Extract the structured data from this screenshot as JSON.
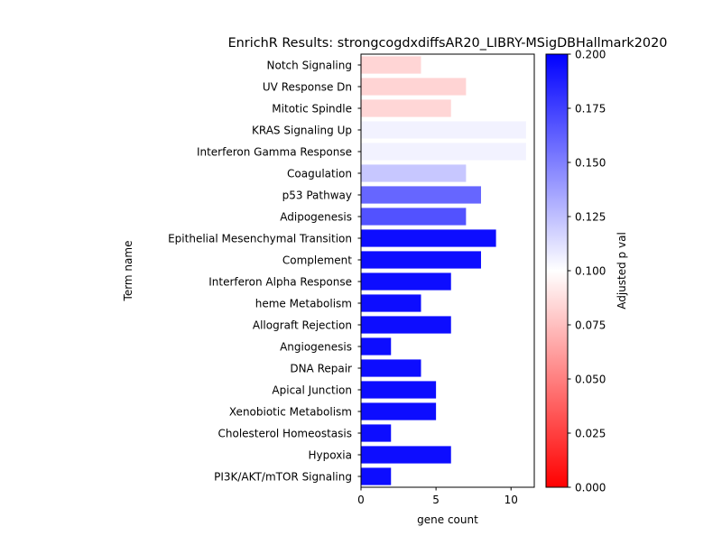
{
  "chart_data": {
    "type": "bar",
    "orientation": "horizontal",
    "title": "EnrichR Results: strongcogdxdiffsAR20_LIBRY-MSigDBHallmark2020",
    "xlabel": "gene count",
    "ylabel": "Term name",
    "xlim": [
      0,
      11.55
    ],
    "x_ticks": [
      "0",
      "5",
      "10"
    ],
    "grid": false,
    "categories": [
      "Notch Signaling",
      "UV Response Dn",
      "Mitotic Spindle",
      "KRAS Signaling Up",
      "Interferon Gamma Response",
      "Coagulation",
      "p53 Pathway",
      "Adipogenesis",
      "Epithelial Mesenchymal Transition",
      "Complement",
      "Interferon Alpha Response",
      "heme Metabolism",
      "Allograft Rejection",
      "Angiogenesis",
      "DNA Repair",
      "Apical Junction",
      "Xenobiotic Metabolism",
      "Cholesterol Homeostasis",
      "Hypoxia",
      "PI3K/AKT/mTOR  Signaling"
    ],
    "values": [
      4,
      7,
      6,
      11,
      11,
      7,
      8,
      7,
      9,
      8,
      6,
      4,
      6,
      2,
      4,
      5,
      5,
      2,
      6,
      2
    ],
    "adjusted_p": [
      0.0835,
      0.083,
      0.084,
      0.105,
      0.105,
      0.122,
      0.16,
      0.168,
      0.195,
      0.195,
      0.195,
      0.195,
      0.195,
      0.195,
      0.195,
      0.195,
      0.195,
      0.195,
      0.195,
      0.195
    ],
    "colorbar": {
      "label": "Adjusted p val",
      "range": [
        0,
        0.2
      ],
      "ticks": [
        "0.000",
        "0.025",
        "0.050",
        "0.075",
        "0.100",
        "0.125",
        "0.150",
        "0.175",
        "0.200"
      ],
      "colormap": [
        "#ff0000",
        "#ffffff",
        "#0000ff"
      ]
    }
  }
}
